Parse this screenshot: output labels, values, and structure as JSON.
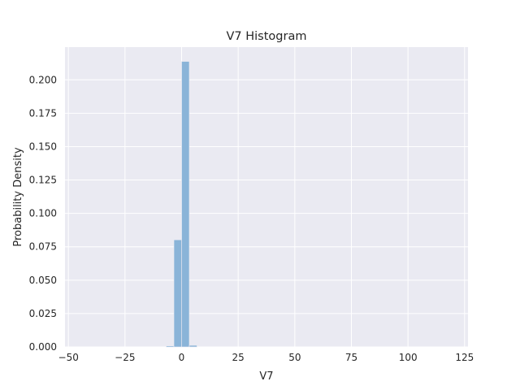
{
  "chart_data": {
    "type": "bar",
    "title": "V7 Histogram",
    "xlabel": "V7",
    "ylabel": "Probability Density",
    "xlim": [
      -51.5,
      126.5
    ],
    "ylim": [
      0,
      0.2245
    ],
    "xticks": [
      -50,
      -25,
      0,
      25,
      50,
      75,
      100,
      125
    ],
    "xtick_labels": [
      "−50",
      "−25",
      "0",
      "25",
      "50",
      "75",
      "100",
      "125"
    ],
    "yticks": [
      0,
      0.025,
      0.05,
      0.075,
      0.1,
      0.125,
      0.15,
      0.175,
      0.2
    ],
    "ytick_labels": [
      "0.000",
      "0.025",
      "0.050",
      "0.075",
      "0.100",
      "0.125",
      "0.150",
      "0.175",
      "0.200"
    ],
    "grid": true,
    "background": "#eaeaf2",
    "bar_color": "#8ab4d8",
    "bins": [
      {
        "x0": -6.8,
        "x1": -3.4,
        "value": 0.0008
      },
      {
        "x0": -3.4,
        "x1": 0.0,
        "value": 0.0802
      },
      {
        "x0": 0.0,
        "x1": 3.4,
        "value": 0.2138
      },
      {
        "x0": 3.4,
        "x1": 6.8,
        "value": 0.0012
      }
    ]
  }
}
